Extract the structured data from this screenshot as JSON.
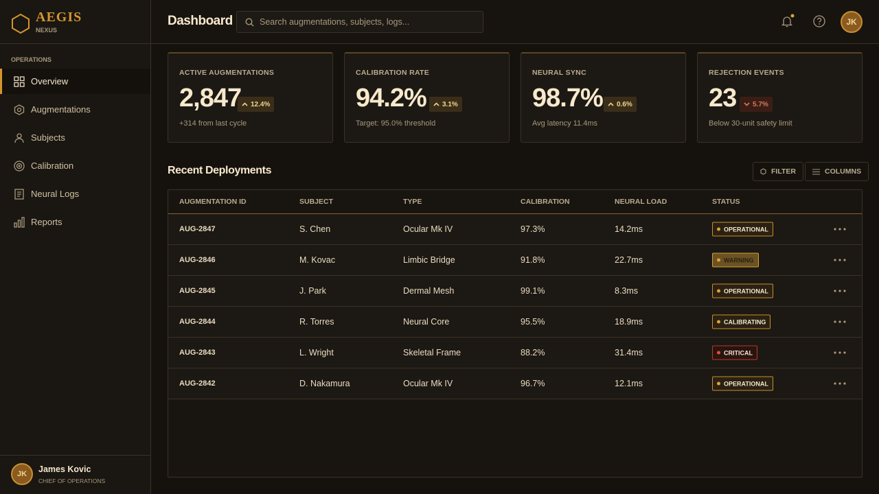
{
  "brand": {
    "name": "AEGIS",
    "sub": "NEXUS"
  },
  "nav": {
    "section": "OPERATIONS",
    "items": [
      "Overview",
      "Augmentations",
      "Subjects",
      "Calibration",
      "Neural Logs",
      "Reports"
    ]
  },
  "user": {
    "initials": "JK",
    "name": "James Kovic",
    "role": "CHIEF OF OPERATIONS"
  },
  "header": {
    "title": "Dashboard",
    "search_placeholder": "Search augmentations, subjects, logs...",
    "avatar": "JK"
  },
  "stats": [
    {
      "label": "ACTIVE AUGMENTATIONS",
      "value": "2,847",
      "delta": "12.4%",
      "note": "+314 from last cycle"
    },
    {
      "label": "CALIBRATION RATE",
      "value": "94.2%",
      "delta": "3.1%",
      "note": "Target: 95.0% threshold"
    },
    {
      "label": "NEURAL SYNC",
      "value": "98.7%",
      "delta": "0.6%",
      "note": "Avg latency 11.4ms"
    },
    {
      "label": "REJECTION EVENTS",
      "value": "23",
      "delta": "5.7%",
      "note": "Below 30-unit safety limit"
    }
  ],
  "table": {
    "title": "Recent Deployments",
    "actions": [
      "FILTER",
      "COLUMNS"
    ],
    "columns": [
      "AUGMENTATION ID",
      "SUBJECT",
      "TYPE",
      "CALIBRATION",
      "NEURAL LOAD",
      "STATUS"
    ],
    "rows": [
      [
        "AUG-2847",
        "S. Chen",
        "Ocular Mk IV",
        "97.3%",
        "14.2ms",
        "OPERATIONAL"
      ],
      [
        "AUG-2846",
        "M. Kovac",
        "Limbic Bridge",
        "91.8%",
        "22.7ms",
        "WARNING"
      ],
      [
        "AUG-2845",
        "J. Park",
        "Dermal Mesh",
        "99.1%",
        "8.3ms",
        "OPERATIONAL"
      ],
      [
        "AUG-2844",
        "R. Torres",
        "Neural Core",
        "95.5%",
        "18.9ms",
        "CALIBRATING"
      ],
      [
        "AUG-2843",
        "L. Wright",
        "Skeletal Frame",
        "88.2%",
        "31.4ms",
        "CRITICAL"
      ],
      [
        "AUG-2842",
        "D. Nakamura",
        "Ocular Mk IV",
        "96.7%",
        "12.1ms",
        "OPERATIONAL"
      ]
    ]
  }
}
